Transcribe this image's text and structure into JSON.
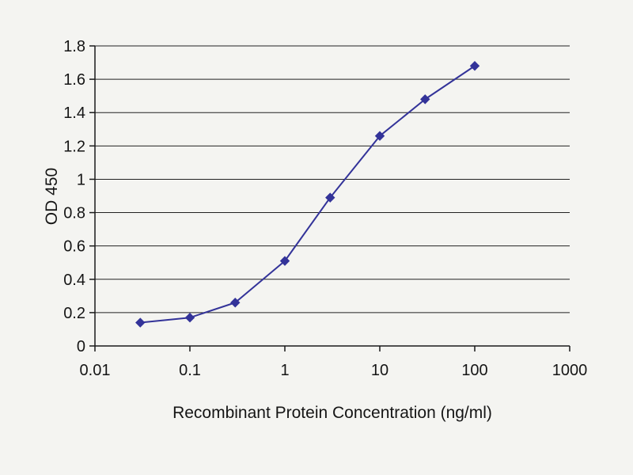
{
  "chart_data": {
    "type": "line",
    "title": "",
    "xlabel": "Recombinant Protein Concentration (ng/ml)",
    "ylabel": "OD 450",
    "x_scale": "log",
    "xlim": [
      0.01,
      1000
    ],
    "ylim": [
      0,
      1.8
    ],
    "x_ticks": [
      0.01,
      0.1,
      1,
      10,
      100,
      1000
    ],
    "x_tick_labels": [
      "0.01",
      "0.1",
      "1",
      "10",
      "100",
      "1000"
    ],
    "y_ticks": [
      0,
      0.2,
      0.4,
      0.6,
      0.8,
      1,
      1.2,
      1.4,
      1.6,
      1.8
    ],
    "y_tick_labels": [
      "0",
      "0.2",
      "0.4",
      "0.6",
      "0.8",
      "1",
      "1.2",
      "1.4",
      "1.6",
      "1.8"
    ],
    "grid": "horizontal",
    "legend": "none",
    "series": [
      {
        "name": "OD450",
        "color": "#333399",
        "marker": "diamond",
        "x": [
          0.03,
          0.1,
          0.3,
          1,
          3,
          10,
          30,
          100
        ],
        "y": [
          0.14,
          0.17,
          0.26,
          0.51,
          0.89,
          1.26,
          1.48,
          1.68
        ]
      }
    ]
  },
  "layout_colors": {
    "background": "#f4f4f1",
    "grid": "#222222",
    "axis": "#1a1a1a",
    "text": "#151515",
    "series": "#333399"
  }
}
